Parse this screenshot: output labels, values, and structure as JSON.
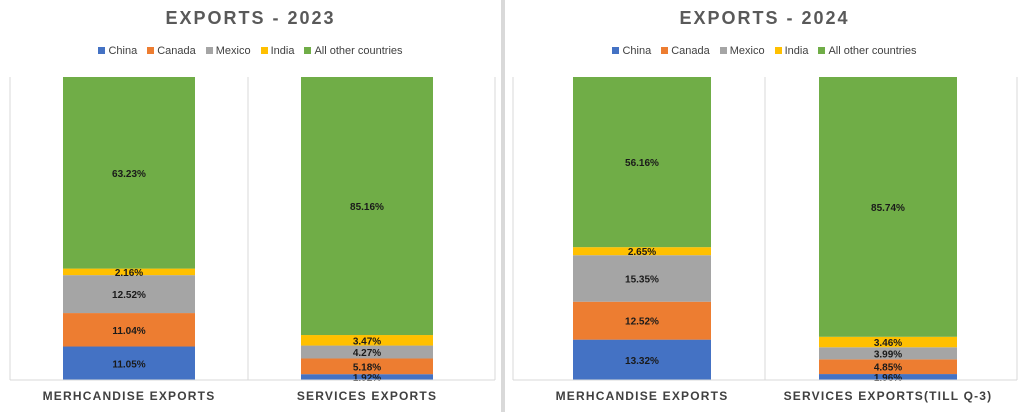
{
  "chart_data": [
    {
      "type": "bar",
      "stacked": true,
      "title": "EXPORTS - 2023",
      "legend_position": "top",
      "grid": false,
      "categories": [
        "MERHCANDISE EXPORTS",
        "SERVICES EXPORTS"
      ],
      "ylim": [
        0,
        100
      ],
      "series": [
        {
          "name": "China",
          "color": "#4472c4",
          "values": [
            11.05,
            1.92
          ],
          "labels": [
            "11.05%",
            "1.92%"
          ]
        },
        {
          "name": "Canada",
          "color": "#ed7d31",
          "values": [
            11.04,
            5.18
          ],
          "labels": [
            "11.04%",
            "5.18%"
          ]
        },
        {
          "name": "Mexico",
          "color": "#a5a5a5",
          "values": [
            12.52,
            4.27
          ],
          "labels": [
            "12.52%",
            "4.27%"
          ]
        },
        {
          "name": "India",
          "color": "#ffc000",
          "values": [
            2.16,
            3.47
          ],
          "labels": [
            "2.16%",
            "3.47%"
          ]
        },
        {
          "name": "All other countries",
          "color": "#70ad47",
          "values": [
            63.23,
            85.16
          ],
          "labels": [
            "63.23%",
            "85.16%"
          ]
        }
      ]
    },
    {
      "type": "bar",
      "stacked": true,
      "title": "EXPORTS - 2024",
      "legend_position": "top",
      "grid": false,
      "categories": [
        "MERHCANDISE EXPORTS",
        "SERVICES EXPORTS(TILL Q-3)"
      ],
      "ylim": [
        0,
        100
      ],
      "series": [
        {
          "name": "China",
          "color": "#4472c4",
          "values": [
            13.32,
            1.96
          ],
          "labels": [
            "13.32%",
            "1.96%"
          ]
        },
        {
          "name": "Canada",
          "color": "#ed7d31",
          "values": [
            12.52,
            4.85
          ],
          "labels": [
            "12.52%",
            "4.85%"
          ]
        },
        {
          "name": "Mexico",
          "color": "#a5a5a5",
          "values": [
            15.35,
            3.99
          ],
          "labels": [
            "15.35%",
            "3.99%"
          ]
        },
        {
          "name": "India",
          "color": "#ffc000",
          "values": [
            2.65,
            3.46
          ],
          "labels": [
            "2.65%",
            "3.46%"
          ]
        },
        {
          "name": "All other countries",
          "color": "#70ad47",
          "values": [
            56.16,
            85.74
          ],
          "labels": [
            "56.16%",
            "85.74%"
          ]
        }
      ]
    }
  ]
}
